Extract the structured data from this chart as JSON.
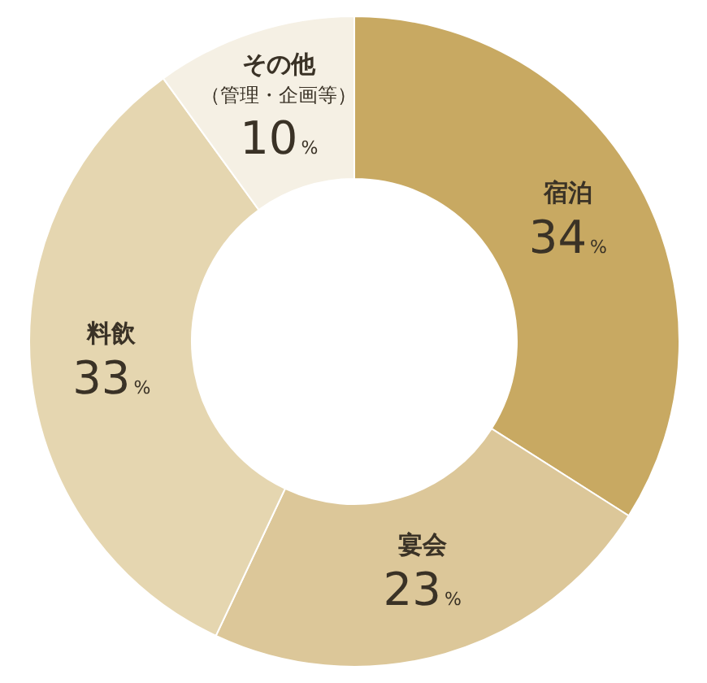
{
  "chart_data": {
    "type": "donut",
    "categories": [
      "宿泊",
      "宴会",
      "料飲",
      "その他（管理・企画等）"
    ],
    "values": [
      34,
      23,
      33,
      10
    ],
    "value_labels": [
      "34%",
      "23%",
      "33%",
      "10%"
    ],
    "colors": [
      "#c8a962",
      "#dcc799",
      "#e5d6b0",
      "#f5f0e4"
    ],
    "legend": false
  }
}
